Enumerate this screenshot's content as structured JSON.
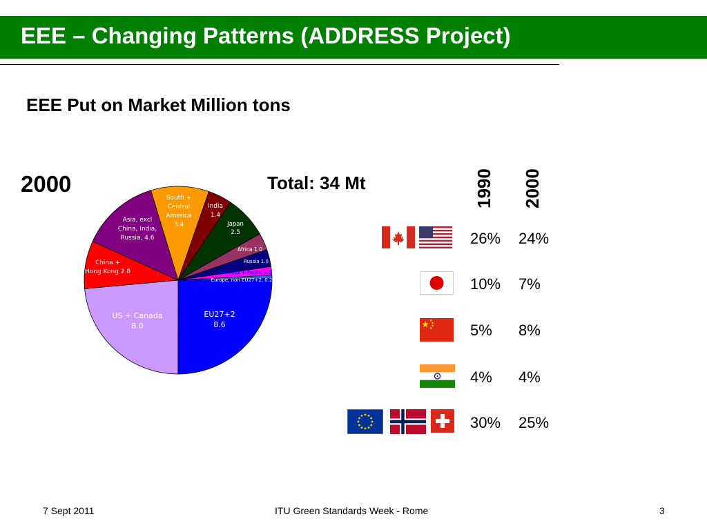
{
  "header": {
    "title": "EEE – Changing Patterns (ADDRESS Project)"
  },
  "slide": {
    "subtitle": "EEE Put on Market Million tons"
  },
  "chart_data": {
    "type": "pie",
    "title": "2000",
    "subtitle": "Total: 34 Mt",
    "unit": "Mt",
    "slices": [
      {
        "label": "EU27+2",
        "display": "EU27+2\n8.6",
        "value": 8.6,
        "color": "#0000ff",
        "textColor": "#ffffff"
      },
      {
        "label": "US + Canada",
        "display": "US + Canada\n8.0",
        "value": 8.0,
        "color": "#cc99ff",
        "textColor": "#ffffff"
      },
      {
        "label": "China + Hong Kong",
        "display": "China +\nHong Kong 2.8",
        "value": 2.8,
        "color": "#ff0000",
        "textColor": "#ffffff"
      },
      {
        "label": "Asia, excl China, India, Russia",
        "display": "Asia, excl\nChina, India,\nRussia, 4.6",
        "value": 4.6,
        "color": "#800080",
        "textColor": "#ffffff"
      },
      {
        "label": "South + Central America",
        "display": "South +\nCentral\nAmerica\n3.4",
        "value": 3.4,
        "color": "#ff9900",
        "textColor": "#ffffff"
      },
      {
        "label": "India",
        "display": "India\n1.4",
        "value": 1.4,
        "color": "#800000",
        "textColor": "#ffffff"
      },
      {
        "label": "Japan",
        "display": "Japan\n2.5",
        "value": 2.5,
        "color": "#003300",
        "textColor": "#ffffff"
      },
      {
        "label": "Africa",
        "display": "Africa 1.0",
        "value": 1.0,
        "color": "#993366",
        "textColor": "#ffffff"
      },
      {
        "label": "Russia",
        "display": "Russia 1.0",
        "value": 1.0,
        "color": "#000080",
        "textColor": "#ffffff"
      },
      {
        "label": "Australia + Pacific",
        "display": "Australia + Pacific 0.5",
        "value": 0.5,
        "color": "#ff00ff",
        "textColor": "#0000ff"
      },
      {
        "label": "Europe, non EU27+2",
        "display": "Europe, non EU27+2, 0.2",
        "value": 0.2,
        "color": "#3366cc",
        "textColor": "#ffffff"
      }
    ]
  },
  "share_table": {
    "columns": [
      "1990",
      "2000"
    ],
    "rows": [
      {
        "region": "US + Canada",
        "flags": [
          "canada-flag",
          "usa-flag"
        ],
        "v1990": "26%",
        "v2000": "24%"
      },
      {
        "region": "Japan",
        "flags": [
          "japan-flag"
        ],
        "v1990": "10%",
        "v2000": "7%"
      },
      {
        "region": "China",
        "flags": [
          "china-flag"
        ],
        "v1990": "5%",
        "v2000": "8%"
      },
      {
        "region": "India",
        "flags": [
          "india-flag"
        ],
        "v1990": "4%",
        "v2000": "4%"
      },
      {
        "region": "EU27+2",
        "flags": [
          "eu-flag",
          "norway-flag",
          "switzerland-flag"
        ],
        "v1990": "30%",
        "v2000": "25%"
      }
    ]
  },
  "footer": {
    "date": "7 Sept 2011",
    "event": "ITU Green Standards Week - Rome",
    "page": "3"
  }
}
